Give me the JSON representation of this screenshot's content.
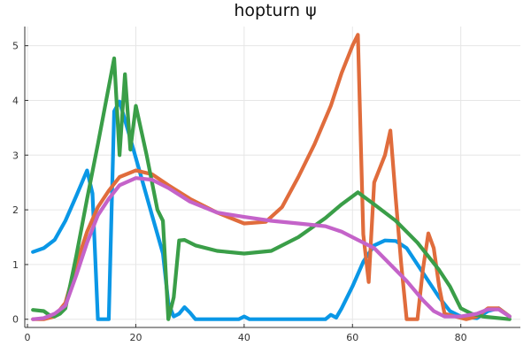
{
  "chart_data": {
    "type": "line",
    "title": "hopturn ψ",
    "xlabel": "",
    "ylabel": "",
    "xlim": [
      -0.5,
      91
    ],
    "ylim": [
      -0.15,
      5.35
    ],
    "xticks": [
      0,
      20,
      40,
      60,
      80
    ],
    "yticks": [
      0,
      1,
      2,
      3,
      4,
      5
    ],
    "grid": true,
    "legend": "none",
    "series": [
      {
        "color": "#0a97e6",
        "points": [
          [
            1,
            1.23
          ],
          [
            3,
            1.3
          ],
          [
            5,
            1.45
          ],
          [
            7,
            1.8
          ],
          [
            9,
            2.25
          ],
          [
            11,
            2.72
          ],
          [
            12,
            2.3
          ],
          [
            13,
            0.0
          ],
          [
            15,
            0.0
          ],
          [
            16,
            3.8
          ],
          [
            17,
            3.98
          ],
          [
            19,
            3.3
          ],
          [
            21,
            2.6
          ],
          [
            23,
            1.9
          ],
          [
            25,
            1.2
          ],
          [
            26,
            0.3
          ],
          [
            27,
            0.05
          ],
          [
            28,
            0.1
          ],
          [
            29,
            0.22
          ],
          [
            30,
            0.12
          ],
          [
            31,
            0.0
          ],
          [
            35,
            0.0
          ],
          [
            39,
            0.0
          ],
          [
            40,
            0.05
          ],
          [
            41,
            0.0
          ],
          [
            50,
            0.0
          ],
          [
            55,
            0.0
          ],
          [
            56,
            0.08
          ],
          [
            57,
            0.03
          ],
          [
            58,
            0.2
          ],
          [
            60,
            0.6
          ],
          [
            62,
            1.05
          ],
          [
            64,
            1.35
          ],
          [
            66,
            1.44
          ],
          [
            68,
            1.43
          ],
          [
            70,
            1.3
          ],
          [
            72,
            1.0
          ],
          [
            74,
            0.7
          ],
          [
            76,
            0.4
          ],
          [
            78,
            0.15
          ],
          [
            80,
            0.05
          ],
          [
            83,
            0.02
          ],
          [
            85,
            0.15
          ],
          [
            87,
            0.2
          ],
          [
            89,
            0.05
          ]
        ]
      },
      {
        "color": "#e06c3c",
        "points": [
          [
            1,
            0.0
          ],
          [
            3,
            0.0
          ],
          [
            5,
            0.05
          ],
          [
            7,
            0.3
          ],
          [
            9,
            1.0
          ],
          [
            11,
            1.6
          ],
          [
            13,
            2.05
          ],
          [
            15,
            2.35
          ],
          [
            17,
            2.6
          ],
          [
            20,
            2.72
          ],
          [
            23,
            2.65
          ],
          [
            26,
            2.45
          ],
          [
            30,
            2.2
          ],
          [
            35,
            1.95
          ],
          [
            40,
            1.75
          ],
          [
            44,
            1.78
          ],
          [
            47,
            2.05
          ],
          [
            50,
            2.6
          ],
          [
            53,
            3.2
          ],
          [
            56,
            3.9
          ],
          [
            58,
            4.5
          ],
          [
            60,
            5.0
          ],
          [
            61,
            5.2
          ],
          [
            62,
            1.55
          ],
          [
            63,
            0.68
          ],
          [
            64,
            2.5
          ],
          [
            66,
            3.0
          ],
          [
            67,
            3.45
          ],
          [
            68,
            2.2
          ],
          [
            69,
            1.0
          ],
          [
            70,
            0.0
          ],
          [
            72,
            0.0
          ],
          [
            73,
            0.9
          ],
          [
            74,
            1.57
          ],
          [
            75,
            1.3
          ],
          [
            76,
            0.6
          ],
          [
            77,
            0.1
          ],
          [
            79,
            0.05
          ],
          [
            81,
            0.0
          ],
          [
            83,
            0.05
          ],
          [
            85,
            0.2
          ],
          [
            87,
            0.2
          ],
          [
            89,
            0.05
          ]
        ]
      },
      {
        "color": "#3a9e48",
        "points": [
          [
            1,
            0.17
          ],
          [
            3,
            0.15
          ],
          [
            4,
            0.08
          ],
          [
            5,
            0.05
          ],
          [
            6,
            0.1
          ],
          [
            7,
            0.2
          ],
          [
            9,
            1.15
          ],
          [
            11,
            2.2
          ],
          [
            13,
            3.2
          ],
          [
            16,
            4.77
          ],
          [
            17,
            3.0
          ],
          [
            18,
            4.48
          ],
          [
            19,
            3.1
          ],
          [
            20,
            3.9
          ],
          [
            22,
            3.0
          ],
          [
            24,
            2.0
          ],
          [
            25,
            1.8
          ],
          [
            26,
            0.0
          ],
          [
            27,
            0.4
          ],
          [
            28,
            1.44
          ],
          [
            29,
            1.45
          ],
          [
            31,
            1.35
          ],
          [
            35,
            1.25
          ],
          [
            40,
            1.2
          ],
          [
            45,
            1.25
          ],
          [
            50,
            1.5
          ],
          [
            55,
            1.85
          ],
          [
            58,
            2.1
          ],
          [
            61,
            2.32
          ],
          [
            64,
            2.1
          ],
          [
            68,
            1.8
          ],
          [
            72,
            1.4
          ],
          [
            76,
            0.9
          ],
          [
            78,
            0.6
          ],
          [
            80,
            0.2
          ],
          [
            82,
            0.1
          ],
          [
            84,
            0.05
          ],
          [
            89,
            0.0
          ]
        ]
      },
      {
        "color": "#c463c9",
        "points": [
          [
            1,
            0.0
          ],
          [
            3,
            0.02
          ],
          [
            5,
            0.1
          ],
          [
            7,
            0.25
          ],
          [
            9,
            0.8
          ],
          [
            11,
            1.4
          ],
          [
            13,
            1.9
          ],
          [
            15,
            2.2
          ],
          [
            17,
            2.45
          ],
          [
            20,
            2.58
          ],
          [
            23,
            2.55
          ],
          [
            26,
            2.4
          ],
          [
            30,
            2.15
          ],
          [
            35,
            1.95
          ],
          [
            40,
            1.87
          ],
          [
            45,
            1.8
          ],
          [
            50,
            1.75
          ],
          [
            55,
            1.7
          ],
          [
            58,
            1.6
          ],
          [
            61,
            1.45
          ],
          [
            64,
            1.3
          ],
          [
            67,
            1.0
          ],
          [
            70,
            0.7
          ],
          [
            73,
            0.35
          ],
          [
            75,
            0.15
          ],
          [
            77,
            0.05
          ],
          [
            80,
            0.05
          ],
          [
            83,
            0.1
          ],
          [
            85,
            0.18
          ],
          [
            87,
            0.18
          ],
          [
            89,
            0.05
          ]
        ]
      }
    ]
  }
}
